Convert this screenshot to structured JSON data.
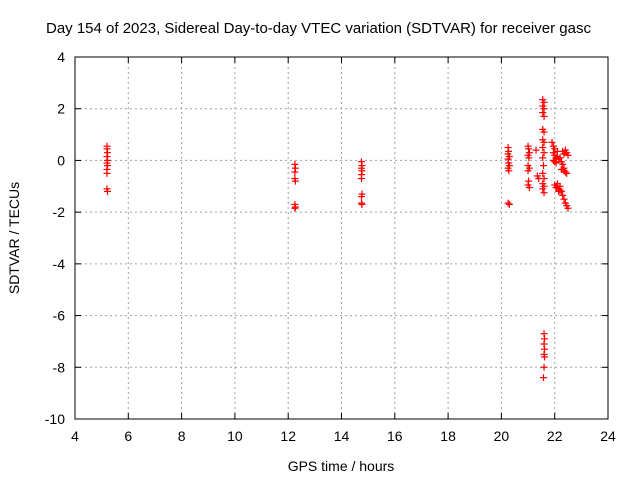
{
  "chart_data": {
    "type": "scatter",
    "title": "Day 154 of 2023, Sidereal Day-to-day VTEC variation (SDTVAR) for receiver gasc",
    "xlabel": "GPS time / hours",
    "ylabel": "SDTVAR / TECUs",
    "xlim": [
      4,
      24
    ],
    "ylim": [
      -10,
      4
    ],
    "xticks": [
      4,
      6,
      8,
      10,
      12,
      14,
      16,
      18,
      20,
      22,
      24
    ],
    "yticks": [
      -10,
      -8,
      -6,
      -4,
      -2,
      0,
      2,
      4
    ],
    "grid": true,
    "marker": "+",
    "marker_color": "#ff0000",
    "series": [
      {
        "name": "SDTVAR",
        "points": [
          [
            5.2,
            0.55
          ],
          [
            5.2,
            0.45
          ],
          [
            5.22,
            0.3
          ],
          [
            5.2,
            0.15
          ],
          [
            5.22,
            0.0
          ],
          [
            5.2,
            -0.1
          ],
          [
            5.22,
            -0.2
          ],
          [
            5.2,
            -0.35
          ],
          [
            5.2,
            -0.5
          ],
          [
            5.2,
            -1.1
          ],
          [
            5.22,
            -1.2
          ],
          [
            12.25,
            -0.15
          ],
          [
            12.27,
            -0.3
          ],
          [
            12.25,
            -0.45
          ],
          [
            12.25,
            -0.7
          ],
          [
            12.27,
            -0.8
          ],
          [
            12.25,
            -1.7
          ],
          [
            12.27,
            -1.8
          ],
          [
            12.25,
            -1.85
          ],
          [
            14.75,
            -0.05
          ],
          [
            14.77,
            -0.2
          ],
          [
            14.75,
            -0.3
          ],
          [
            14.77,
            -0.4
          ],
          [
            14.75,
            -0.55
          ],
          [
            14.75,
            -0.7
          ],
          [
            14.77,
            -1.3
          ],
          [
            14.75,
            -1.4
          ],
          [
            14.75,
            -1.65
          ],
          [
            14.77,
            -1.7
          ],
          [
            20.25,
            0.5
          ],
          [
            20.27,
            0.35
          ],
          [
            20.25,
            0.25
          ],
          [
            20.3,
            0.15
          ],
          [
            20.25,
            0.05
          ],
          [
            20.27,
            -0.1
          ],
          [
            20.3,
            -0.2
          ],
          [
            20.25,
            -0.3
          ],
          [
            20.28,
            -0.4
          ],
          [
            20.25,
            -1.65
          ],
          [
            20.3,
            -1.7
          ],
          [
            21.0,
            0.55
          ],
          [
            21.02,
            0.45
          ],
          [
            21.05,
            0.3
          ],
          [
            21.0,
            0.2
          ],
          [
            21.03,
            0.1
          ],
          [
            21.0,
            -0.2
          ],
          [
            21.05,
            -0.3
          ],
          [
            21.0,
            -0.4
          ],
          [
            21.02,
            -0.8
          ],
          [
            21.0,
            -0.95
          ],
          [
            21.05,
            -1.05
          ],
          [
            21.3,
            0.4
          ],
          [
            21.35,
            -0.6
          ],
          [
            21.4,
            -0.7
          ],
          [
            21.55,
            2.35
          ],
          [
            21.6,
            2.25
          ],
          [
            21.55,
            2.1
          ],
          [
            21.6,
            2.0
          ],
          [
            21.55,
            1.85
          ],
          [
            21.6,
            1.7
          ],
          [
            21.55,
            1.2
          ],
          [
            21.6,
            1.1
          ],
          [
            21.55,
            0.8
          ],
          [
            21.6,
            0.7
          ],
          [
            21.55,
            0.5
          ],
          [
            21.6,
            0.3
          ],
          [
            21.55,
            0.1
          ],
          [
            21.58,
            -0.2
          ],
          [
            21.55,
            -0.5
          ],
          [
            21.6,
            -0.7
          ],
          [
            21.55,
            -0.9
          ],
          [
            21.6,
            -1.0
          ],
          [
            21.55,
            -1.1
          ],
          [
            21.6,
            -1.25
          ],
          [
            21.6,
            -6.7
          ],
          [
            21.62,
            -6.9
          ],
          [
            21.6,
            -7.1
          ],
          [
            21.62,
            -7.3
          ],
          [
            21.6,
            -7.5
          ],
          [
            21.62,
            -7.6
          ],
          [
            21.6,
            -8.0
          ],
          [
            21.58,
            -8.4
          ],
          [
            21.9,
            0.7
          ],
          [
            21.95,
            0.55
          ],
          [
            22.0,
            0.45
          ],
          [
            21.95,
            0.3
          ],
          [
            22.0,
            0.2
          ],
          [
            22.05,
            0.1
          ],
          [
            21.95,
            0.0
          ],
          [
            22.0,
            -0.05
          ],
          [
            22.05,
            -0.1
          ],
          [
            22.1,
            0.15
          ],
          [
            22.1,
            0.35
          ],
          [
            22.15,
            0.05
          ],
          [
            22.2,
            0.1
          ],
          [
            22.25,
            -0.05
          ],
          [
            22.3,
            -0.15
          ],
          [
            22.35,
            -0.3
          ],
          [
            22.4,
            -0.45
          ],
          [
            22.45,
            -0.5
          ],
          [
            22.3,
            0.35
          ],
          [
            22.35,
            0.25
          ],
          [
            22.4,
            0.4
          ],
          [
            22.45,
            0.3
          ],
          [
            22.5,
            0.2
          ],
          [
            22.0,
            -0.95
          ],
          [
            22.05,
            -1.05
          ],
          [
            22.1,
            -1.0
          ],
          [
            22.15,
            -1.1
          ],
          [
            22.2,
            -1.15
          ],
          [
            22.25,
            -1.2
          ],
          [
            22.3,
            -1.35
          ],
          [
            22.35,
            -1.5
          ],
          [
            22.4,
            -1.65
          ],
          [
            22.45,
            -1.75
          ],
          [
            22.5,
            -1.85
          ],
          [
            22.15,
            -1.2
          ],
          [
            22.2,
            -1.0
          ],
          [
            22.1,
            -0.9
          ],
          [
            22.25,
            -0.35
          ],
          [
            22.35,
            -0.4
          ]
        ]
      }
    ]
  }
}
